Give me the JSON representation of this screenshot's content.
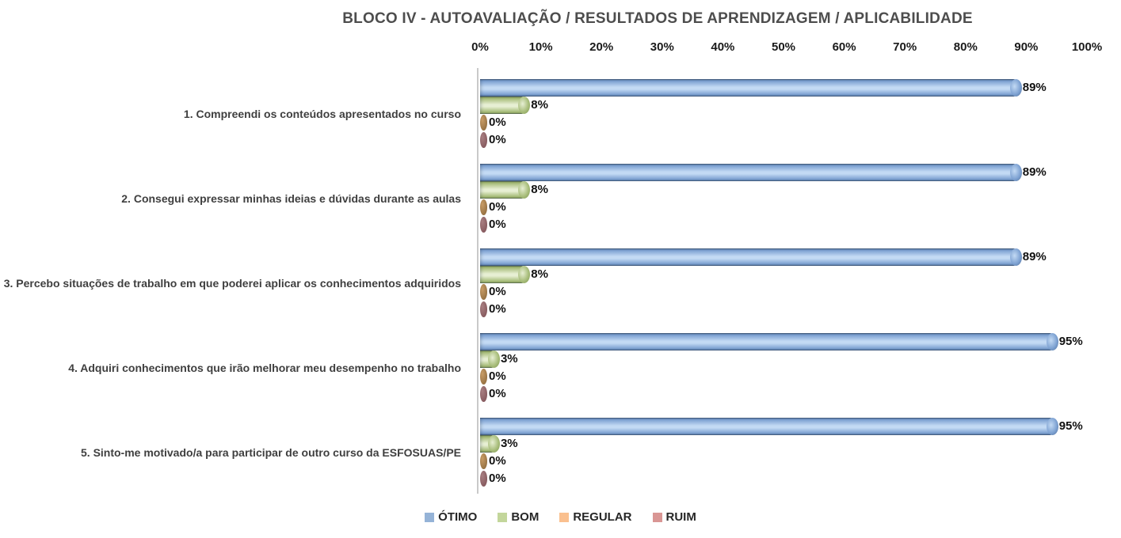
{
  "chart_data": {
    "type": "bar",
    "orientation": "horizontal",
    "title": "BLOCO IV - AUTOAVALIAÇÃO / RESULTADOS DE APRENDIZAGEM / APLICABILIDADE",
    "categories": [
      "1. Compreendi os conteúdos apresentados no curso",
      "2. Consegui expressar minhas ideias e dúvidas durante as aulas",
      "3. Percebo situações de trabalho em que poderei aplicar os conhecimentos adquiridos",
      "4. Adquiri conhecimentos que irão melhorar meu desempenho no trabalho",
      "5. Sinto-me motivado/a para participar de outro curso da ESFOSUAS/PE"
    ],
    "series": [
      {
        "id": "otimo",
        "name": "ÓTIMO",
        "legend_color": "#95B3D7",
        "values": [
          89,
          89,
          89,
          95,
          95
        ],
        "colors": {
          "edge": "#4E6E99",
          "mid": "#7FA3D3",
          "light": "#C3DAF4",
          "zero_light": "#7FA3D3",
          "zero_dark": "#4E6E99"
        }
      },
      {
        "id": "bom",
        "name": "BOM",
        "legend_color": "#C3D69B",
        "values": [
          8,
          8,
          8,
          3,
          3
        ],
        "colors": {
          "edge": "#7D944F",
          "mid": "#A9BE7C",
          "light": "#E7EFD3",
          "zero_light": "#A9BE7C",
          "zero_dark": "#7D944F"
        }
      },
      {
        "id": "regular",
        "name": "REGULAR",
        "legend_color": "#FAC08F",
        "values": [
          0,
          0,
          0,
          0,
          0
        ],
        "colors": {
          "edge": "#8F6B3D",
          "mid": "#B08A55",
          "light": "#D9B184",
          "zero_light": "#C89C66",
          "zero_dark": "#8F6B3D"
        }
      },
      {
        "id": "ruim",
        "name": "RUIM",
        "legend_color": "#D99694",
        "values": [
          0,
          0,
          0,
          0,
          0
        ],
        "colors": {
          "edge": "#82555A",
          "mid": "#9C6F73",
          "light": "#BC9194",
          "zero_light": "#A87E81",
          "zero_dark": "#82555A"
        }
      }
    ],
    "x_axis": {
      "ticks": [
        "0%",
        "10%",
        "20%",
        "30%",
        "40%",
        "50%",
        "60%",
        "70%",
        "80%",
        "90%",
        "100%"
      ],
      "min": 0,
      "max": 100
    },
    "value_suffix": "%",
    "grid": false,
    "legend_position": "bottom"
  }
}
